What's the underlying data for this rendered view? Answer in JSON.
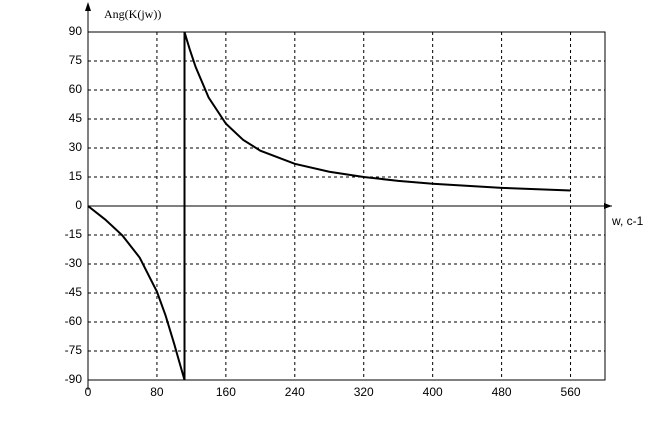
{
  "chart_data": {
    "type": "line",
    "y_label": "Ang(K(jw))",
    "x_label": "w, c-1",
    "x": [
      0,
      20,
      40,
      60,
      80,
      90,
      100,
      106,
      110,
      112,
      112,
      114,
      118,
      125,
      140,
      160,
      180,
      200,
      240,
      280,
      320,
      360,
      400,
      480,
      560
    ],
    "values": [
      0,
      -7.0,
      -15.3,
      -26.7,
      -44.3,
      -56.6,
      -71.3,
      -80.7,
      -86.9,
      -90,
      90,
      87.0,
      81.1,
      71.8,
      56.1,
      42.6,
      34.2,
      28.6,
      21.8,
      17.7,
      15.0,
      13.0,
      11.5,
      9.4,
      8.0
    ],
    "color": "#000000",
    "xlim": [
      0,
      600
    ],
    "xticks": [
      0,
      80,
      160,
      240,
      320,
      400,
      480,
      560
    ],
    "ylim": [
      -90,
      90
    ],
    "yticks": [
      -90,
      -75,
      -60,
      -45,
      -30,
      -15,
      0,
      15,
      30,
      45,
      60,
      75,
      90
    ],
    "grid": true
  }
}
